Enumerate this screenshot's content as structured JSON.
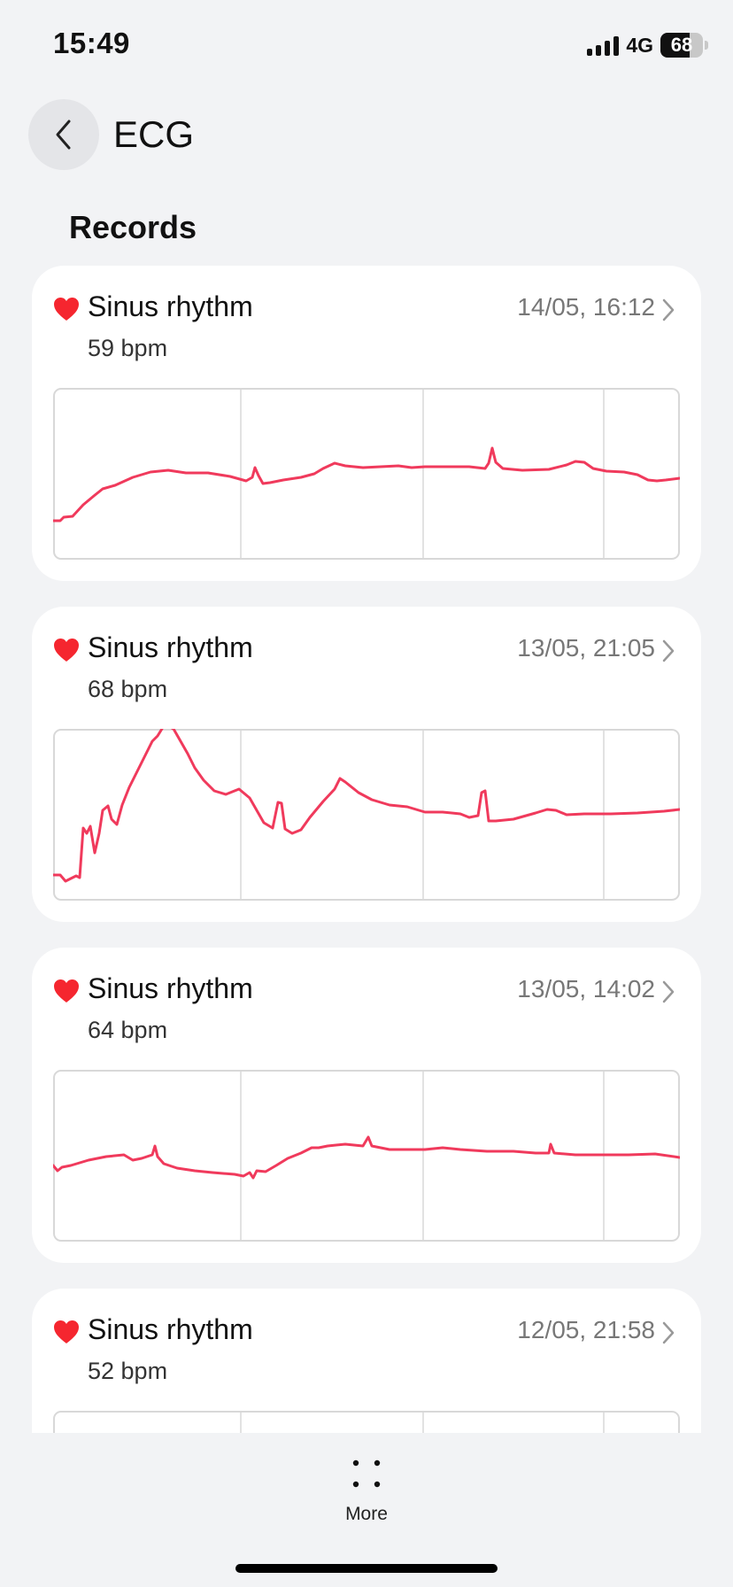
{
  "status_bar": {
    "time": "15:49",
    "network": "4G",
    "battery": "68",
    "battery_level": 0.68
  },
  "header": {
    "title": "ECG",
    "back_icon": "chevron-left-icon"
  },
  "section_title": "Records",
  "colors": {
    "accent": "#f03a5c",
    "heart": "#f5262f",
    "background": "#f2f3f5"
  },
  "records": [
    {
      "rhythm": "Sinus rhythm",
      "bpm": "59 bpm",
      "date": "14/05, 16:12"
    },
    {
      "rhythm": "Sinus rhythm",
      "bpm": "68 bpm",
      "date": "13/05, 21:05"
    },
    {
      "rhythm": "Sinus rhythm",
      "bpm": "64 bpm",
      "date": "13/05, 14:02"
    },
    {
      "rhythm": "Sinus rhythm",
      "bpm": "52 bpm",
      "date": "12/05, 21:58"
    }
  ],
  "bottom": {
    "more_label": "More",
    "more_icon": "four-dots-icon"
  }
}
